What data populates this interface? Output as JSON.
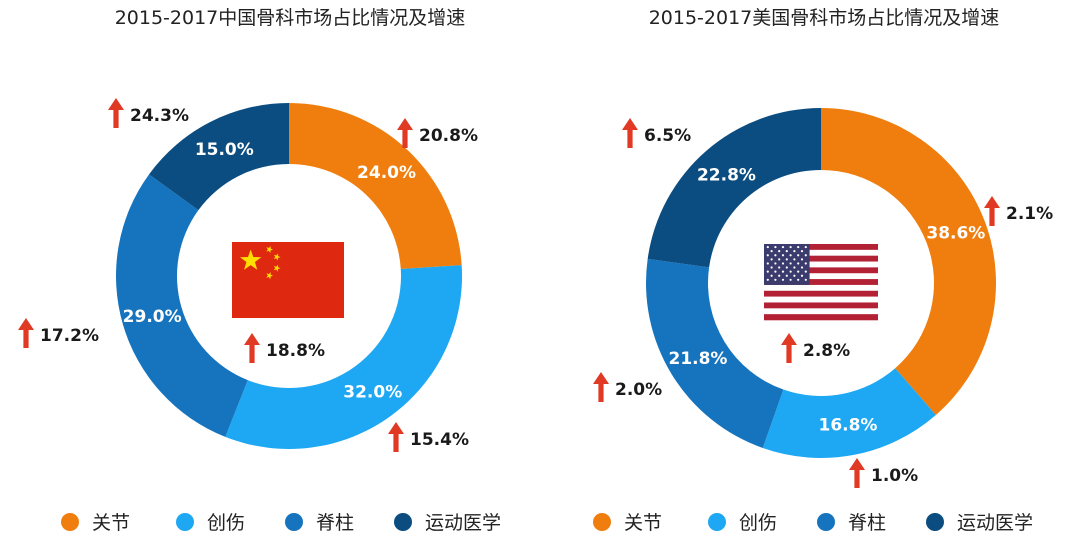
{
  "legend": [
    {
      "label": "关节",
      "color": "#F07E0E"
    },
    {
      "label": "创伤",
      "color": "#1EA7F2"
    },
    {
      "label": "脊柱",
      "color": "#1574BD"
    },
    {
      "label": "运动医学",
      "color": "#0B4D80"
    }
  ],
  "arrow_color": "#E03A24",
  "chart_data": [
    {
      "type": "donut",
      "title": "2015-2017中国骨科市场占比情况及增速",
      "flag": "china-flag",
      "center_growth": "18.8%",
      "series": [
        {
          "category": "关节",
          "share": 24.0,
          "share_label": "24.0%",
          "growth": "20.8%"
        },
        {
          "category": "创伤",
          "share": 32.0,
          "share_label": "32.0%",
          "growth": "15.4%"
        },
        {
          "category": "脊柱",
          "share": 29.0,
          "share_label": "29.0%",
          "growth": "17.2%"
        },
        {
          "category": "运动医学",
          "share": 15.0,
          "share_label": "15.0%",
          "growth": "24.3%"
        }
      ]
    },
    {
      "type": "donut",
      "title": "2015-2017美国骨科市场占比情况及增速",
      "flag": "usa-flag",
      "center_growth": "2.8%",
      "series": [
        {
          "category": "关节",
          "share": 38.6,
          "share_label": "38.6%",
          "growth": "2.1%"
        },
        {
          "category": "创伤",
          "share": 16.8,
          "share_label": "16.8%",
          "growth": "1.0%"
        },
        {
          "category": "脊柱",
          "share": 21.8,
          "share_label": "21.8%",
          "growth": "2.0%"
        },
        {
          "category": "运动医学",
          "share": 22.8,
          "share_label": "22.8%",
          "growth": "6.5%"
        }
      ]
    }
  ]
}
